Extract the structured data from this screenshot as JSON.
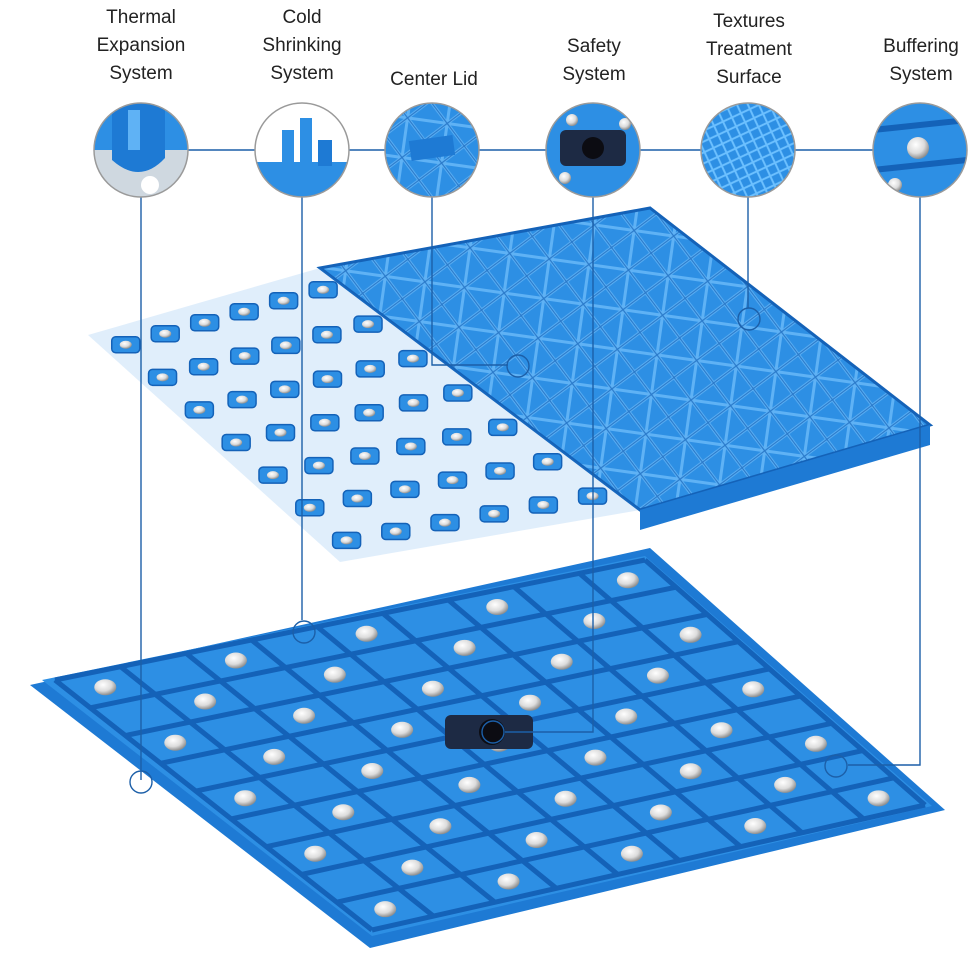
{
  "colors": {
    "tile_blue": "#2d8fe4",
    "tile_dark": "#1462b8",
    "tile_light": "#5fb2f5",
    "leader_line": "#1c5fa8",
    "text": "#222222",
    "knob_silver": "#dcdcdc"
  },
  "features": [
    {
      "id": "thermal-expansion",
      "label_lines": [
        "Thermal",
        "Expansion",
        "System"
      ]
    },
    {
      "id": "cold-shrinking",
      "label_lines": [
        "Cold",
        "Shrinking",
        "System"
      ]
    },
    {
      "id": "center-lid",
      "label_lines": [
        "Center Lid"
      ]
    },
    {
      "id": "safety",
      "label_lines": [
        "Safety",
        "System"
      ]
    },
    {
      "id": "textures-treatment",
      "label_lines": [
        "Textures",
        "Treatment",
        "Surface"
      ]
    },
    {
      "id": "buffering",
      "label_lines": [
        "Buffering",
        "System"
      ]
    }
  ],
  "icons": {
    "upper_layer": "tile-top-layer-icon",
    "lower_layer": "tile-base-layer-icon"
  }
}
